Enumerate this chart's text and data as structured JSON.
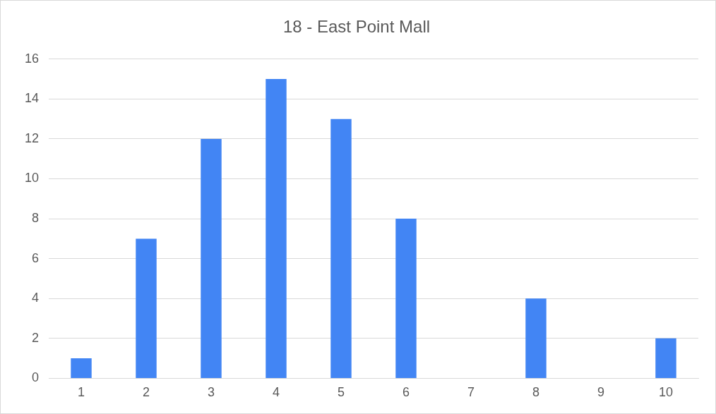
{
  "chart_data": {
    "type": "bar",
    "title": "18 - East Point Mall",
    "categories": [
      "1",
      "2",
      "3",
      "4",
      "5",
      "6",
      "7",
      "8",
      "9",
      "10"
    ],
    "values": [
      1,
      7,
      12,
      15,
      13,
      8,
      0,
      4,
      0,
      2
    ],
    "color": "#4285f4",
    "ylim": [
      0,
      16
    ],
    "yticks": [
      0,
      2,
      4,
      6,
      8,
      10,
      12,
      14,
      16
    ],
    "grid": "y"
  }
}
